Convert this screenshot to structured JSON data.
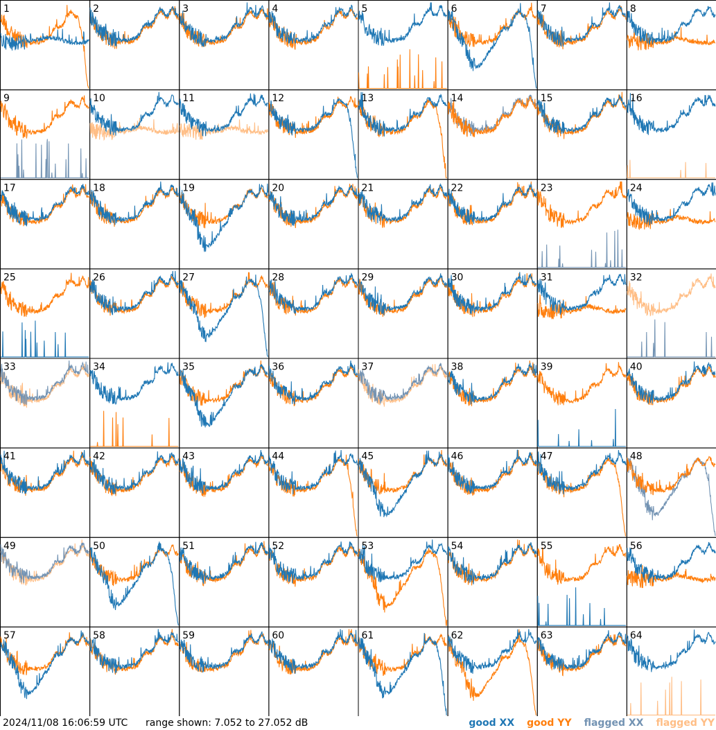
{
  "timestamp": "2024/11/08 16:06:59 UTC",
  "range_text": "range shown: 7.052 to 27.052 dB",
  "legend": [
    {
      "label": "good XX",
      "color": "#1f77b4"
    },
    {
      "label": "good YY",
      "color": "#ff7f0e"
    },
    {
      "label": "flagged XX",
      "color": "#7393b3"
    },
    {
      "label": "flagged YY",
      "color": "#ffbe86"
    }
  ],
  "chart_data": {
    "type": "line",
    "layout": "8x8 small multiples of antenna spectra",
    "ylim_db": [
      7.052,
      27.052
    ],
    "panels": [
      {
        "id": "1",
        "xx": "good",
        "yy": "good",
        "xx_shape": "flat",
        "yy_shape": "falloff"
      },
      {
        "id": "2",
        "xx": "good",
        "yy": "good",
        "xx_shape": "normal",
        "yy_shape": "normal"
      },
      {
        "id": "3",
        "xx": "good",
        "yy": "good",
        "xx_shape": "normal",
        "yy_shape": "normal"
      },
      {
        "id": "4",
        "xx": "good",
        "yy": "good",
        "xx_shape": "normal",
        "yy_shape": "normal"
      },
      {
        "id": "5",
        "xx": "good",
        "yy": "good",
        "xx_shape": "normal",
        "yy_shape": "low"
      },
      {
        "id": "6",
        "xx": "good",
        "yy": "good",
        "xx_shape": "dip-falloff",
        "yy_shape": "normal"
      },
      {
        "id": "7",
        "xx": "good",
        "yy": "good",
        "xx_shape": "normal",
        "yy_shape": "normal"
      },
      {
        "id": "8",
        "xx": "good",
        "yy": "good",
        "xx_shape": "normal",
        "yy_shape": "flat"
      },
      {
        "id": "9",
        "xx": "flagged",
        "yy": "good",
        "xx_shape": "low",
        "yy_shape": "normal"
      },
      {
        "id": "10",
        "xx": "good",
        "yy": "flagged",
        "xx_shape": "normal",
        "yy_shape": "flat"
      },
      {
        "id": "11",
        "xx": "good",
        "yy": "flagged",
        "xx_shape": "normal",
        "yy_shape": "flat"
      },
      {
        "id": "12",
        "xx": "good",
        "yy": "good",
        "xx_shape": "falloff",
        "yy_shape": "normal"
      },
      {
        "id": "13",
        "xx": "good",
        "yy": "good",
        "xx_shape": "normal",
        "yy_shape": "falloff"
      },
      {
        "id": "14",
        "xx": "flagged",
        "yy": "good",
        "xx_shape": "normal",
        "yy_shape": "normal"
      },
      {
        "id": "15",
        "xx": "good",
        "yy": "good",
        "xx_shape": "normal",
        "yy_shape": "normal"
      },
      {
        "id": "16",
        "xx": "good",
        "yy": "flagged",
        "xx_shape": "normal",
        "yy_shape": "low"
      },
      {
        "id": "17",
        "xx": "good",
        "yy": "good",
        "xx_shape": "normal",
        "yy_shape": "normal"
      },
      {
        "id": "18",
        "xx": "good",
        "yy": "good",
        "xx_shape": "normal",
        "yy_shape": "normal"
      },
      {
        "id": "19",
        "xx": "good",
        "yy": "good",
        "xx_shape": "dip",
        "yy_shape": "normal"
      },
      {
        "id": "20",
        "xx": "good",
        "yy": "good",
        "xx_shape": "normal",
        "yy_shape": "normal"
      },
      {
        "id": "21",
        "xx": "good",
        "yy": "good",
        "xx_shape": "normal",
        "yy_shape": "normal"
      },
      {
        "id": "22",
        "xx": "good",
        "yy": "good",
        "xx_shape": "normal",
        "yy_shape": "normal"
      },
      {
        "id": "23",
        "xx": "flagged",
        "yy": "good",
        "xx_shape": "low",
        "yy_shape": "normal"
      },
      {
        "id": "24",
        "xx": "good",
        "yy": "good",
        "xx_shape": "normal",
        "yy_shape": "flat"
      },
      {
        "id": "25",
        "xx": "good",
        "yy": "good",
        "xx_shape": "low",
        "yy_shape": "normal"
      },
      {
        "id": "26",
        "xx": "good",
        "yy": "good",
        "xx_shape": "normal",
        "yy_shape": "normal"
      },
      {
        "id": "27",
        "xx": "good",
        "yy": "good",
        "xx_shape": "dip-falloff",
        "yy_shape": "normal"
      },
      {
        "id": "28",
        "xx": "good",
        "yy": "good",
        "xx_shape": "normal",
        "yy_shape": "normal"
      },
      {
        "id": "29",
        "xx": "good",
        "yy": "good",
        "xx_shape": "normal",
        "yy_shape": "normal"
      },
      {
        "id": "30",
        "xx": "good",
        "yy": "good",
        "xx_shape": "normal",
        "yy_shape": "normal"
      },
      {
        "id": "31",
        "xx": "good",
        "yy": "good",
        "xx_shape": "normal",
        "yy_shape": "flat"
      },
      {
        "id": "32",
        "xx": "flagged",
        "yy": "flagged",
        "xx_shape": "low",
        "yy_shape": "normal"
      },
      {
        "id": "33",
        "xx": "flagged",
        "yy": "flagged",
        "xx_shape": "normal",
        "yy_shape": "normal"
      },
      {
        "id": "34",
        "xx": "good",
        "yy": "good",
        "xx_shape": "normal",
        "yy_shape": "low"
      },
      {
        "id": "35",
        "xx": "good",
        "yy": "good",
        "xx_shape": "dip",
        "yy_shape": "normal"
      },
      {
        "id": "36",
        "xx": "good",
        "yy": "good",
        "xx_shape": "normal",
        "yy_shape": "normal"
      },
      {
        "id": "37",
        "xx": "flagged",
        "yy": "flagged",
        "xx_shape": "normal",
        "yy_shape": "normal"
      },
      {
        "id": "38",
        "xx": "good",
        "yy": "good",
        "xx_shape": "normal",
        "yy_shape": "normal"
      },
      {
        "id": "39",
        "xx": "good",
        "yy": "good",
        "xx_shape": "low",
        "yy_shape": "normal"
      },
      {
        "id": "40",
        "xx": "good",
        "yy": "good",
        "xx_shape": "normal",
        "yy_shape": "normal"
      },
      {
        "id": "41",
        "xx": "good",
        "yy": "good",
        "xx_shape": "normal",
        "yy_shape": "normal"
      },
      {
        "id": "42",
        "xx": "good",
        "yy": "good",
        "xx_shape": "normal",
        "yy_shape": "normal"
      },
      {
        "id": "43",
        "xx": "good",
        "yy": "good",
        "xx_shape": "normal",
        "yy_shape": "normal"
      },
      {
        "id": "44",
        "xx": "good",
        "yy": "good",
        "xx_shape": "normal",
        "yy_shape": "falloff"
      },
      {
        "id": "45",
        "xx": "good",
        "yy": "good",
        "xx_shape": "dip",
        "yy_shape": "normal"
      },
      {
        "id": "46",
        "xx": "good",
        "yy": "good",
        "xx_shape": "normal",
        "yy_shape": "normal"
      },
      {
        "id": "47",
        "xx": "good",
        "yy": "good",
        "xx_shape": "normal",
        "yy_shape": "falloff"
      },
      {
        "id": "48",
        "xx": "flagged",
        "yy": "good",
        "xx_shape": "dip-falloff",
        "yy_shape": "normal"
      },
      {
        "id": "49",
        "xx": "flagged",
        "yy": "flagged",
        "xx_shape": "normal",
        "yy_shape": "normal"
      },
      {
        "id": "50",
        "xx": "good",
        "yy": "good",
        "xx_shape": "dip-falloff",
        "yy_shape": "normal"
      },
      {
        "id": "51",
        "xx": "good",
        "yy": "good",
        "xx_shape": "normal",
        "yy_shape": "normal"
      },
      {
        "id": "52",
        "xx": "good",
        "yy": "good",
        "xx_shape": "normal",
        "yy_shape": "normal"
      },
      {
        "id": "53",
        "xx": "good",
        "yy": "good",
        "xx_shape": "normal",
        "yy_shape": "dip-falloff"
      },
      {
        "id": "54",
        "xx": "good",
        "yy": "good",
        "xx_shape": "normal",
        "yy_shape": "normal"
      },
      {
        "id": "55",
        "xx": "good",
        "yy": "good",
        "xx_shape": "low",
        "yy_shape": "normal"
      },
      {
        "id": "56",
        "xx": "good",
        "yy": "good",
        "xx_shape": "normal",
        "yy_shape": "flat"
      },
      {
        "id": "57",
        "xx": "good",
        "yy": "good",
        "xx_shape": "dip",
        "yy_shape": "normal"
      },
      {
        "id": "58",
        "xx": "good",
        "yy": "good",
        "xx_shape": "normal",
        "yy_shape": "normal"
      },
      {
        "id": "59",
        "xx": "good",
        "yy": "good",
        "xx_shape": "normal",
        "yy_shape": "normal"
      },
      {
        "id": "60",
        "xx": "good",
        "yy": "good",
        "xx_shape": "normal",
        "yy_shape": "normal"
      },
      {
        "id": "61",
        "xx": "good",
        "yy": "good",
        "xx_shape": "dip-falloff",
        "yy_shape": "normal"
      },
      {
        "id": "62",
        "xx": "good",
        "yy": "good",
        "xx_shape": "normal",
        "yy_shape": "dip-falloff"
      },
      {
        "id": "63",
        "xx": "good",
        "yy": "good",
        "xx_shape": "normal",
        "yy_shape": "normal"
      },
      {
        "id": "64",
        "xx": "good",
        "yy": "flagged",
        "xx_shape": "normal",
        "yy_shape": "low"
      }
    ]
  }
}
